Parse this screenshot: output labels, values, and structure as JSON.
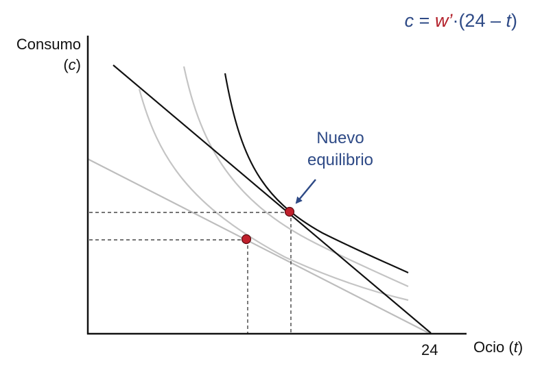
{
  "equation": {
    "lhs": "c",
    "equals": " = ",
    "wage": "w’",
    "dot": "·",
    "open": "(24 – ",
    "var": "t",
    "close": ")"
  },
  "y_axis": {
    "label": "Consumo",
    "symbol_open": "(",
    "symbol": "c",
    "symbol_close": ")"
  },
  "x_axis": {
    "label": "Ocio (",
    "symbol": "t",
    "label_close": ")",
    "tick": "24"
  },
  "annotation": {
    "line1": "Nuevo",
    "line2": "equilibrio"
  },
  "colors": {
    "budget_line_new": "#111111",
    "budget_line_old": "#bdbdbd",
    "indifference_active": "#111111",
    "indifference_inactive": "#c4c4c4",
    "equilibrium_point": "#c0202c",
    "annotation": "#2e4a86",
    "guide_lines": "#222222"
  }
}
